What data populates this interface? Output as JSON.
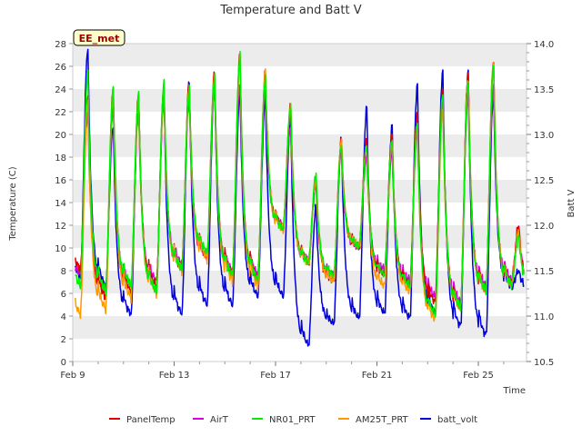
{
  "chart_data": {
    "type": "line",
    "title": "Temperature and Batt V",
    "badge": "EE_met",
    "xlabel": "Time",
    "ylabel": "Temperature (C)",
    "y2label": "Batt V",
    "xlim": [
      9,
      26.9
    ],
    "ylim": [
      0,
      28
    ],
    "y2lim": [
      10.5,
      14.0
    ],
    "x_ticks": [
      {
        "x": 9,
        "label": "Feb 9"
      },
      {
        "x": 13,
        "label": "Feb 13"
      },
      {
        "x": 17,
        "label": "Feb 17"
      },
      {
        "x": 21,
        "label": "Feb 21"
      },
      {
        "x": 25,
        "label": "Feb 25"
      }
    ],
    "y_ticks": [
      0,
      2,
      4,
      6,
      8,
      10,
      12,
      14,
      16,
      18,
      20,
      22,
      24,
      26,
      28
    ],
    "y2_ticks": [
      {
        "v": 10.5,
        "label": "10.5"
      },
      {
        "v": 11.0,
        "label": "11.0"
      },
      {
        "v": 11.5,
        "label": "11.5"
      },
      {
        "v": 12.0,
        "label": "12.0"
      },
      {
        "v": 12.5,
        "label": "12.5"
      },
      {
        "v": 13.0,
        "label": "13.0"
      },
      {
        "v": 13.5,
        "label": "13.5"
      },
      {
        "v": 14.0,
        "label": "14.0"
      }
    ],
    "days": [
      9,
      10,
      11,
      12,
      13,
      14,
      15,
      16,
      17,
      18,
      19,
      20,
      21,
      22,
      23,
      24,
      25,
      26
    ],
    "series": [
      {
        "name": "PanelTemp",
        "color": "#dd0000",
        "axis": "left",
        "min": [
          8.0,
          5.5,
          6.0,
          6.5,
          8.0,
          9.0,
          7.5,
          7.0,
          11.5,
          8.5,
          7.0,
          10.0,
          7.5,
          6.5,
          5.0,
          4.5,
          6.0,
          6.5
        ],
        "max": [
          23.5,
          24.0,
          23.5,
          24.0,
          24.5,
          25.5,
          27.0,
          25.5,
          22.5,
          16.0,
          19.5,
          19.5,
          20.0,
          22.0,
          24.0,
          25.5,
          26.5,
          12.0
        ]
      },
      {
        "name": "AirT",
        "color": "#dd00dd",
        "axis": "left",
        "min": [
          7.5,
          6.0,
          6.5,
          7.0,
          8.5,
          9.0,
          7.8,
          7.5,
          11.8,
          8.8,
          7.5,
          10.0,
          8.0,
          7.0,
          5.5,
          5.0,
          6.5,
          7.0
        ],
        "max": [
          22.0,
          22.5,
          22.0,
          23.0,
          23.0,
          24.0,
          24.5,
          24.0,
          20.5,
          15.5,
          18.5,
          18.0,
          18.5,
          20.5,
          22.5,
          23.5,
          24.0,
          11.5
        ]
      },
      {
        "name": "NR01_PRT",
        "color": "#00ee00",
        "axis": "left",
        "min": [
          6.5,
          6.0,
          6.5,
          6.0,
          8.0,
          9.5,
          7.5,
          7.0,
          11.5,
          8.5,
          7.5,
          10.0,
          7.5,
          6.5,
          4.0,
          4.5,
          6.0,
          6.5
        ],
        "max": [
          25.5,
          24.0,
          23.5,
          24.5,
          24.0,
          25.0,
          27.0,
          25.0,
          22.5,
          16.5,
          19.0,
          19.0,
          19.5,
          21.0,
          23.5,
          24.5,
          26.0,
          11.0
        ]
      },
      {
        "name": "AM25T_PRT",
        "color": "#ff9900",
        "axis": "left",
        "min": [
          4.0,
          4.5,
          5.5,
          6.0,
          8.0,
          9.0,
          7.0,
          6.5,
          11.5,
          8.5,
          7.0,
          10.0,
          6.5,
          6.0,
          3.5,
          4.5,
          6.0,
          6.5
        ],
        "max": [
          23.0,
          23.5,
          23.0,
          24.0,
          24.0,
          25.0,
          26.5,
          25.5,
          22.5,
          16.0,
          19.5,
          19.0,
          19.5,
          21.0,
          22.5,
          25.0,
          26.5,
          11.5
        ]
      },
      {
        "name": "batt_volt",
        "color": "#0000dd",
        "axis": "right",
        "min": [
          11.4,
          11.3,
          11.0,
          11.3,
          11.0,
          11.1,
          11.1,
          11.2,
          11.2,
          10.65,
          10.9,
          10.95,
          11.0,
          10.95,
          11.0,
          10.85,
          10.75,
          11.3
        ],
        "max": [
          13.95,
          13.1,
          13.4,
          13.5,
          13.6,
          13.6,
          13.45,
          13.4,
          13.2,
          12.2,
          12.95,
          13.3,
          13.1,
          13.55,
          13.7,
          13.7,
          13.45,
          11.5
        ]
      }
    ]
  }
}
